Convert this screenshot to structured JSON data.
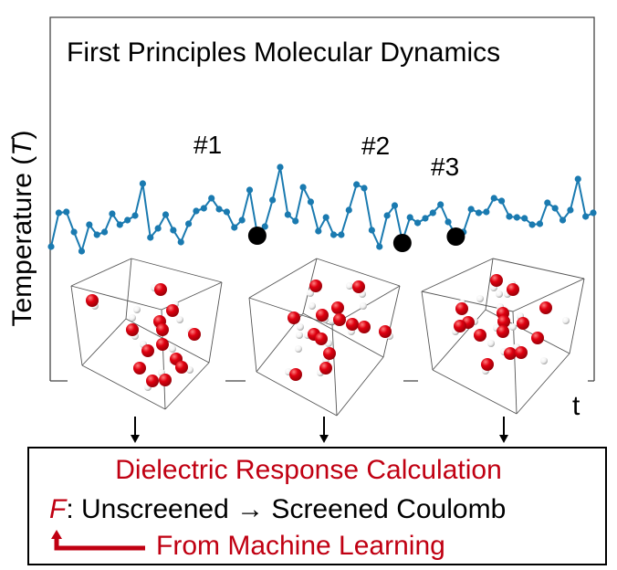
{
  "chart_data": {
    "type": "line",
    "title": "First Principles Molecular Dynamics",
    "ylabel_prefix": "Temperature (",
    "ylabel_var": "T",
    "ylabel_suffix": ")",
    "xlabel": "t",
    "series_color": "#1a7ab0",
    "highlight_color": "#000000",
    "values": [
      10,
      47,
      48,
      26,
      5,
      34,
      23,
      26,
      46,
      34,
      39,
      44,
      79,
      20,
      30,
      45,
      28,
      15,
      35,
      49,
      52,
      63,
      51,
      48,
      31,
      39,
      72,
      24,
      32,
      61,
      97,
      45,
      38,
      75,
      59,
      27,
      42,
      23,
      23,
      50,
      78,
      74,
      28,
      10,
      44,
      55,
      16,
      42,
      36,
      41,
      47,
      56,
      37,
      23,
      26,
      51,
      47,
      48,
      63,
      60,
      43,
      42,
      41,
      34,
      35,
      58,
      52,
      39,
      50,
      84,
      43,
      47
    ],
    "highlights": [
      {
        "label": "#1",
        "index": 27
      },
      {
        "label": "#2",
        "index": 46
      },
      {
        "label": "#3",
        "index": 53
      }
    ]
  },
  "snapshots": {
    "oxygen_color": "#e00010",
    "hydrogen_color": "#f2f2f2"
  },
  "calc_box": {
    "title": "Dielectric Response Calculation",
    "f_symbol": "F",
    "mapping": ": Unscreened → Screened Coulomb",
    "source": "From Machine Learning"
  }
}
